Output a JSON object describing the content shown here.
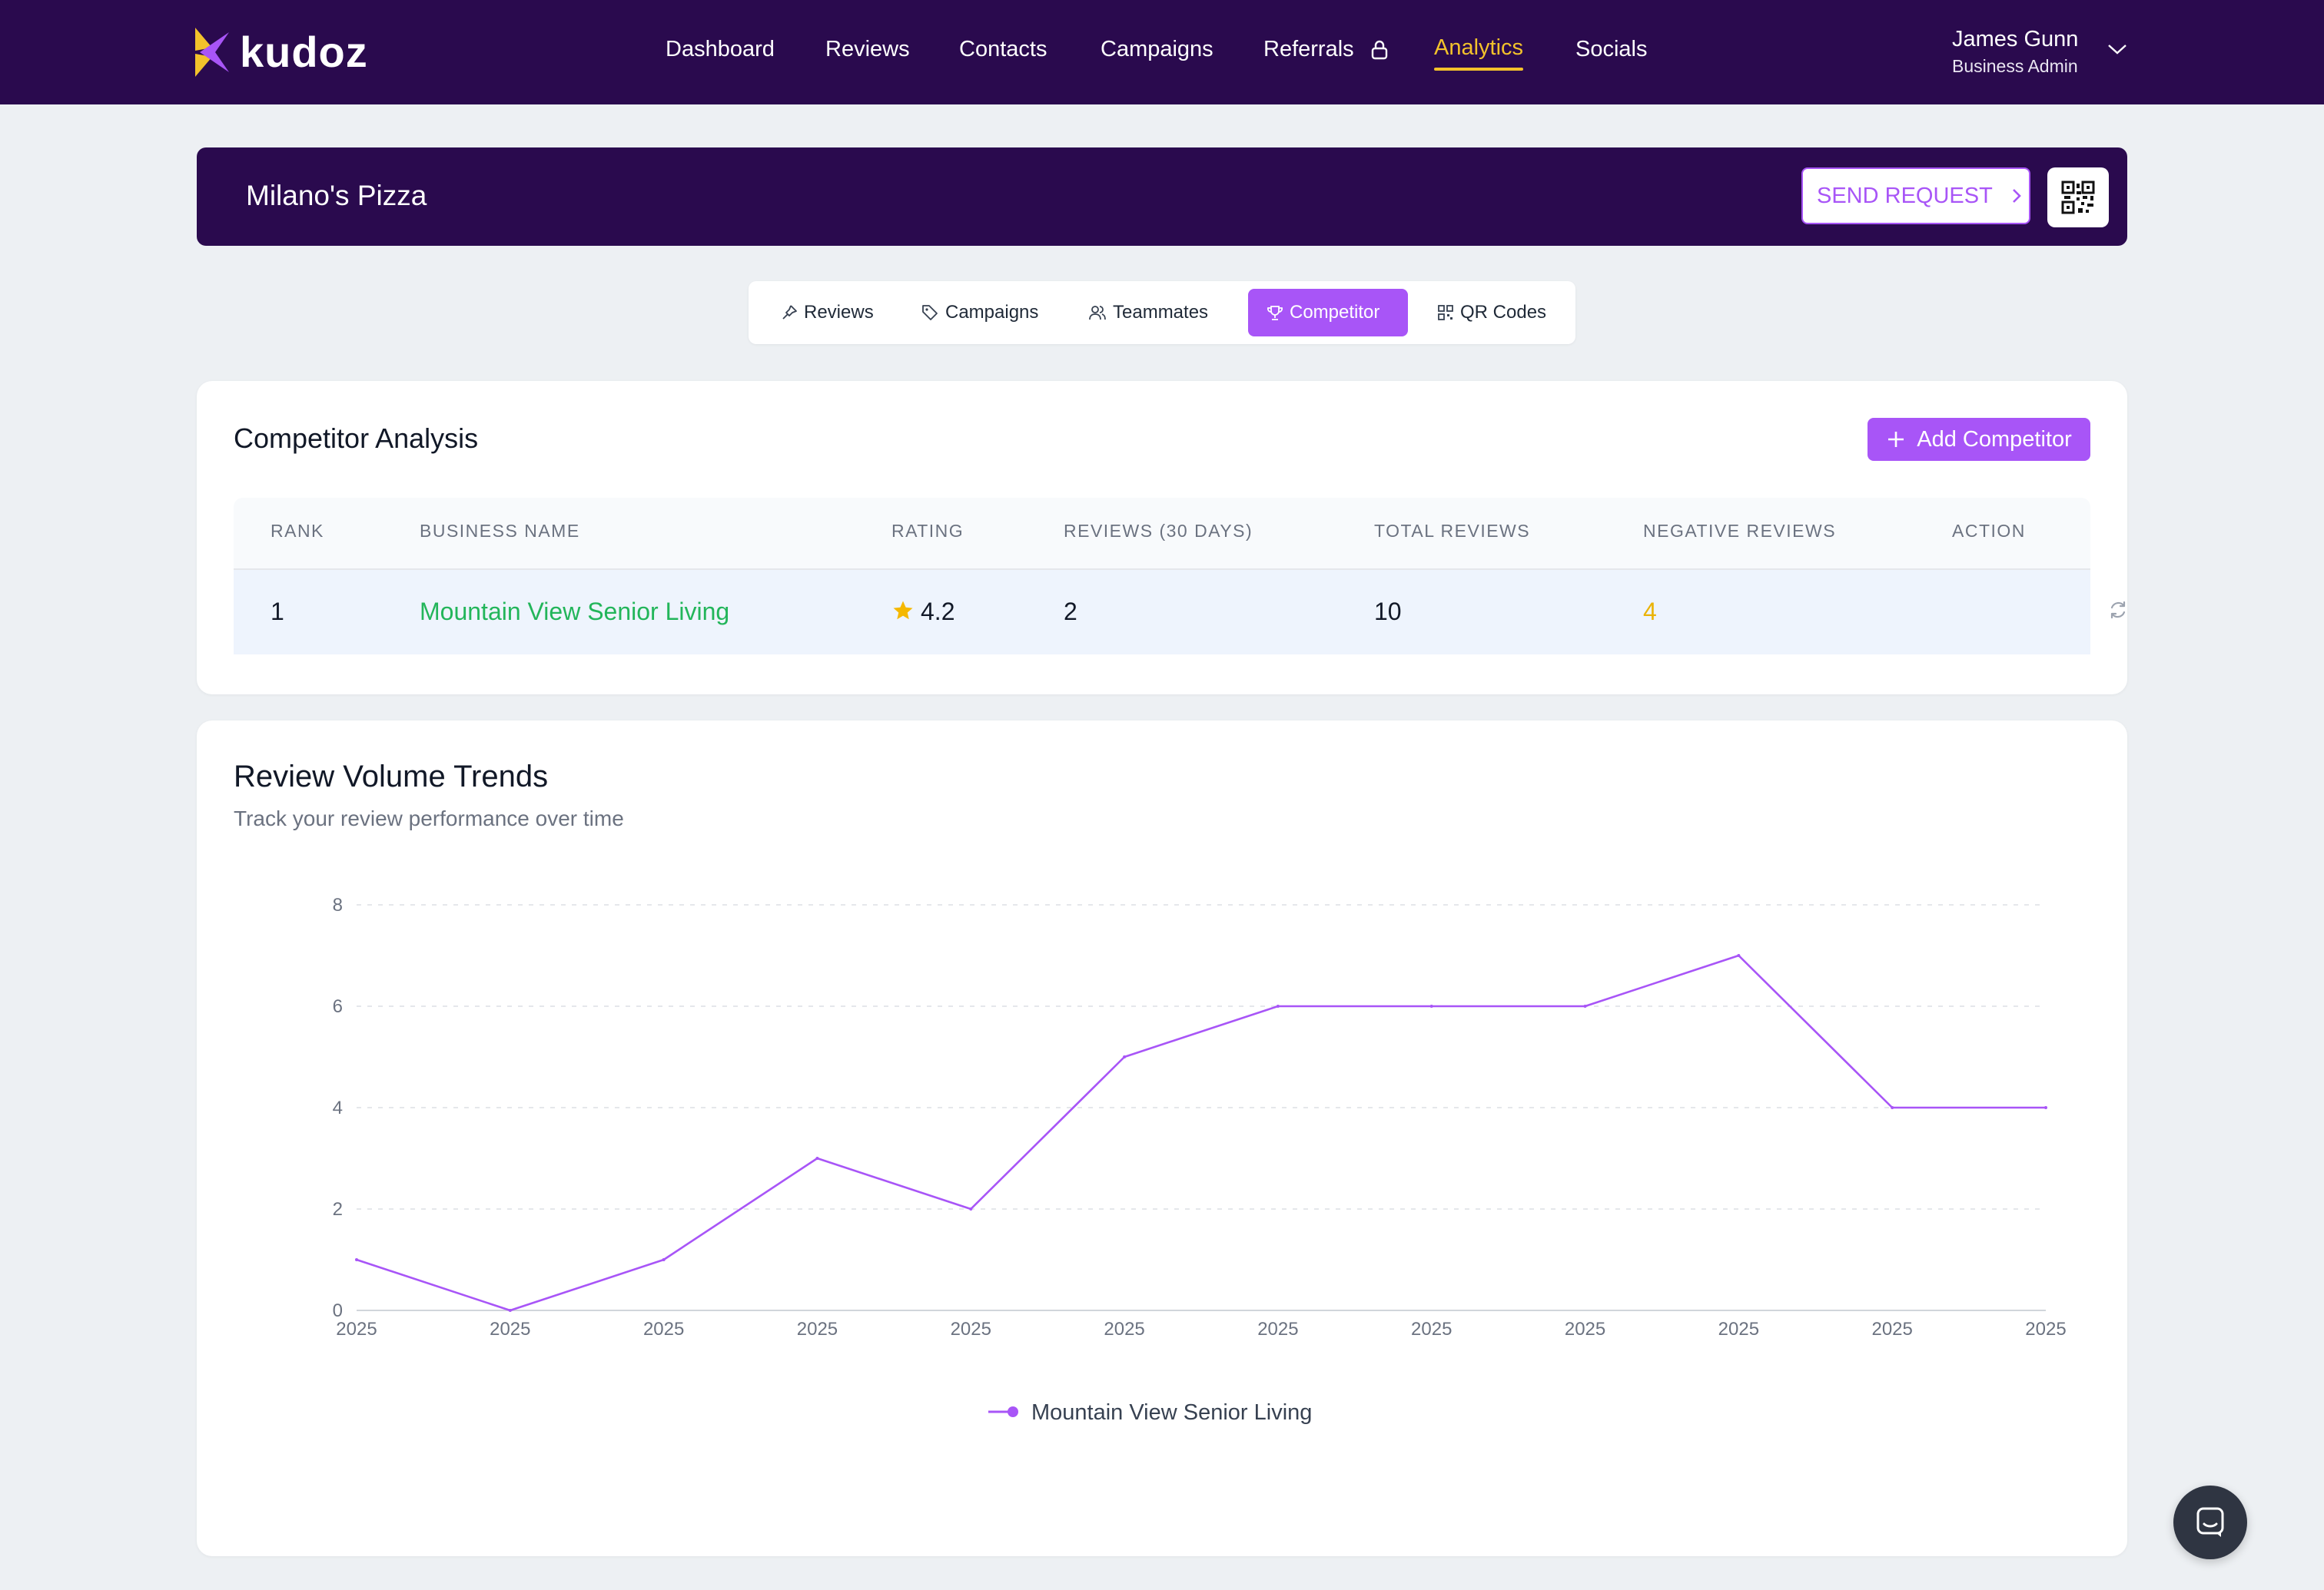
{
  "brand": {
    "name": "kudoz",
    "accent": "#f3c22b",
    "primary": "#a855f7",
    "nav_bg": "#2a0a4e"
  },
  "nav": {
    "items": [
      {
        "label": "Dashboard"
      },
      {
        "label": "Reviews"
      },
      {
        "label": "Contacts"
      },
      {
        "label": "Campaigns"
      },
      {
        "label": "Referrals",
        "icon": "lock-icon"
      },
      {
        "label": "Analytics",
        "active": true
      },
      {
        "label": "Socials"
      }
    ],
    "user": {
      "name": "James Gunn",
      "role": "Business Admin"
    }
  },
  "banner": {
    "business_name": "Milano's Pizza",
    "send_request_label": "SEND REQUEST",
    "qr_icon": "qr-code-icon"
  },
  "tabs": [
    {
      "label": "Reviews",
      "icon": "pin-icon"
    },
    {
      "label": "Campaigns",
      "icon": "tag-icon"
    },
    {
      "label": "Teammates",
      "icon": "users-icon"
    },
    {
      "label": "Competitor",
      "icon": "trophy-icon",
      "active": true
    },
    {
      "label": "QR Codes",
      "icon": "qr-code-icon"
    }
  ],
  "competitor": {
    "title": "Competitor Analysis",
    "add_label": "Add Competitor",
    "columns": [
      "RANK",
      "BUSINESS NAME",
      "RATING",
      "REVIEWS (30 DAYS)",
      "TOTAL REVIEWS",
      "NEGATIVE REVIEWS",
      "ACTION"
    ],
    "rows": [
      {
        "rank": "1",
        "name": "Mountain View Senior Living",
        "rating": "4.2",
        "reviews_30": "2",
        "total": "10",
        "negative": "4",
        "action_icon": "refresh-icon"
      }
    ]
  },
  "trends": {
    "title": "Review Volume Trends",
    "subtitle": "Track your review performance over time"
  },
  "chart_data": {
    "type": "line",
    "x": [
      "2025",
      "2025",
      "2025",
      "2025",
      "2025",
      "2025",
      "2025",
      "2025",
      "2025",
      "2025",
      "2025",
      "2025"
    ],
    "series": [
      {
        "name": "Mountain View Senior Living",
        "color": "#a855f7",
        "values": [
          1,
          0,
          1,
          3,
          2,
          5,
          6,
          6,
          6,
          7,
          4,
          4
        ]
      }
    ],
    "yticks": [
      0,
      2,
      4,
      6,
      8
    ],
    "ylim": [
      0,
      8
    ],
    "grid": true,
    "legend": "bottom-center",
    "title": "",
    "xlabel": "",
    "ylabel": ""
  },
  "chat_icon": "chat-icon"
}
